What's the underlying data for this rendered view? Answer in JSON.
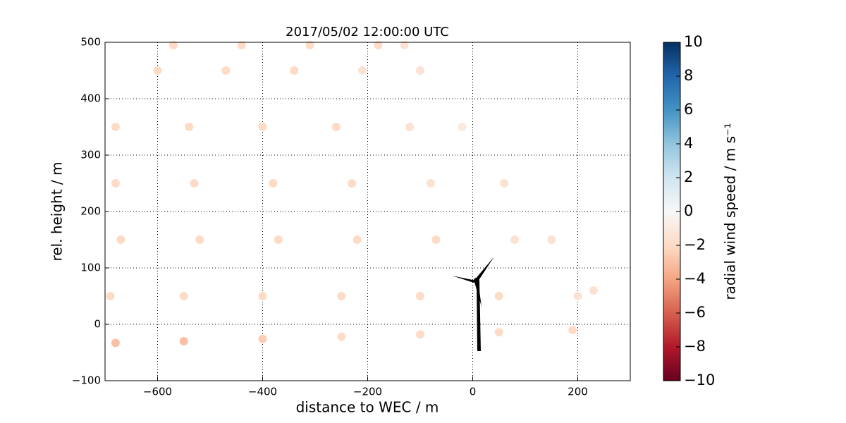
{
  "chart_data": {
    "type": "scatter",
    "title": "2017/05/02 12:00:00 UTC",
    "xlabel": "distance to WEC / m",
    "ylabel": "rel. height / m",
    "x": [
      -680,
      -550,
      -400,
      -250,
      -100,
      50,
      190,
      -690,
      -550,
      -400,
      -250,
      -100,
      50,
      200,
      230,
      -670,
      -520,
      -370,
      -220,
      -70,
      80,
      150,
      -680,
      -530,
      -380,
      -230,
      -80,
      60,
      -680,
      -540,
      -400,
      -260,
      -120,
      -20,
      -600,
      -470,
      -340,
      -210,
      -100,
      -570,
      -440,
      -310,
      -180,
      -130
    ],
    "y": [
      -33,
      -30,
      -26,
      -22,
      -18,
      -14,
      -10,
      50,
      50,
      50,
      50,
      50,
      50,
      50,
      60,
      150,
      150,
      150,
      150,
      150,
      150,
      150,
      250,
      250,
      250,
      250,
      250,
      250,
      350,
      350,
      350,
      350,
      350,
      350,
      450,
      450,
      450,
      450,
      450,
      495,
      495,
      495,
      495,
      495
    ],
    "values": [
      -3,
      -3,
      -2.5,
      -2,
      -2,
      -2,
      -2,
      -2,
      -2,
      -2,
      -2,
      -2,
      -2,
      -1.5,
      -1.5,
      -2,
      -2,
      -2,
      -2,
      -2,
      -1.5,
      -1.5,
      -2,
      -2,
      -2,
      -2,
      -1.5,
      -1.5,
      -2,
      -2,
      -2,
      -2,
      -1.5,
      -1,
      -2,
      -2,
      -2,
      -1.5,
      -1.5,
      -2,
      -2,
      -2,
      -2,
      -1.5
    ],
    "xlim": [
      -700,
      300
    ],
    "ylim": [
      -100,
      500
    ],
    "xticks": [
      {
        "value": -600,
        "label": "−600"
      },
      {
        "value": -400,
        "label": "−400"
      },
      {
        "value": -200,
        "label": "−200"
      },
      0,
      200
    ],
    "yticks": [
      {
        "value": -100,
        "label": "−100"
      },
      0,
      100,
      200,
      300,
      400,
      500
    ],
    "grid": true,
    "colorbar": {
      "label": "radial wind speed / m s⁻¹",
      "lim": [
        -10,
        10
      ],
      "ticks": [
        {
          "value": -10,
          "label": "−10"
        },
        {
          "value": -8,
          "label": "−8"
        },
        {
          "value": -6,
          "label": "−6"
        },
        {
          "value": -4,
          "label": "−4"
        },
        {
          "value": -2,
          "label": "−2"
        },
        0,
        2,
        4,
        6,
        8,
        10
      ],
      "colors": [
        "#67001f",
        "#b2182b",
        "#d6604d",
        "#f4a582",
        "#fddbc7",
        "#f7f7f7",
        "#d1e5f0",
        "#92c5de",
        "#4393c3",
        "#2166ac",
        "#053061"
      ]
    }
  }
}
